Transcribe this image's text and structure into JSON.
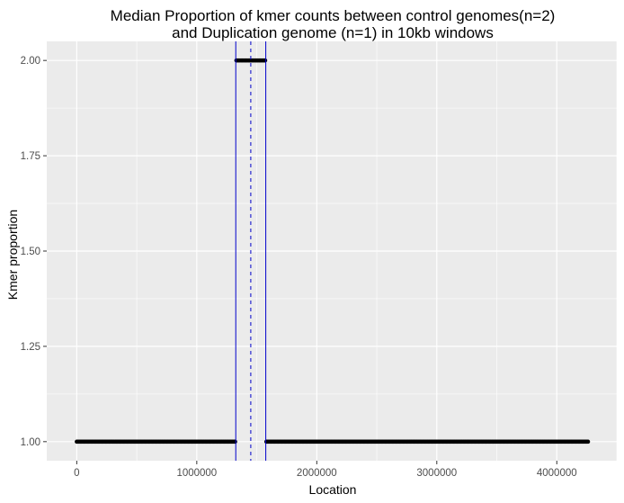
{
  "chart_data": {
    "type": "scatter",
    "title_line1": "Median Proportion of kmer counts between control genomes(n=2)",
    "title_line2": "and Duplication genome (n=1) in 10kb windows",
    "xlabel": "Location",
    "ylabel": "Kmer proportion",
    "xlim": [
      -250000,
      4500000
    ],
    "ylim": [
      0.95,
      2.05
    ],
    "x_ticks": [
      0,
      1000000,
      2000000,
      3000000,
      4000000
    ],
    "x_tick_labels": [
      "0",
      "1000000",
      "2000000",
      "3000000",
      "4000000"
    ],
    "y_ticks": [
      1.0,
      1.25,
      1.5,
      1.75,
      2.0
    ],
    "y_tick_labels": [
      "1.00",
      "1.25",
      "1.50",
      "1.75",
      "2.00"
    ],
    "grid": true,
    "background": "#ebebeb",
    "gridline_color": "#ffffff",
    "point_color": "#000000",
    "vline_color": "#0000cc",
    "series": [
      {
        "x_start": 0,
        "x_end": 1320000,
        "step": 10000,
        "y": 1.0
      },
      {
        "x_start": 1330000,
        "x_end": 1570000,
        "step": 10000,
        "y": 2.0
      },
      {
        "x_start": 1580000,
        "x_end": 4260000,
        "step": 10000,
        "y": 1.0
      }
    ],
    "vlines": [
      {
        "x": 1325000,
        "style": "solid"
      },
      {
        "x": 1450000,
        "style": "dashed"
      },
      {
        "x": 1575000,
        "style": "solid"
      }
    ]
  }
}
